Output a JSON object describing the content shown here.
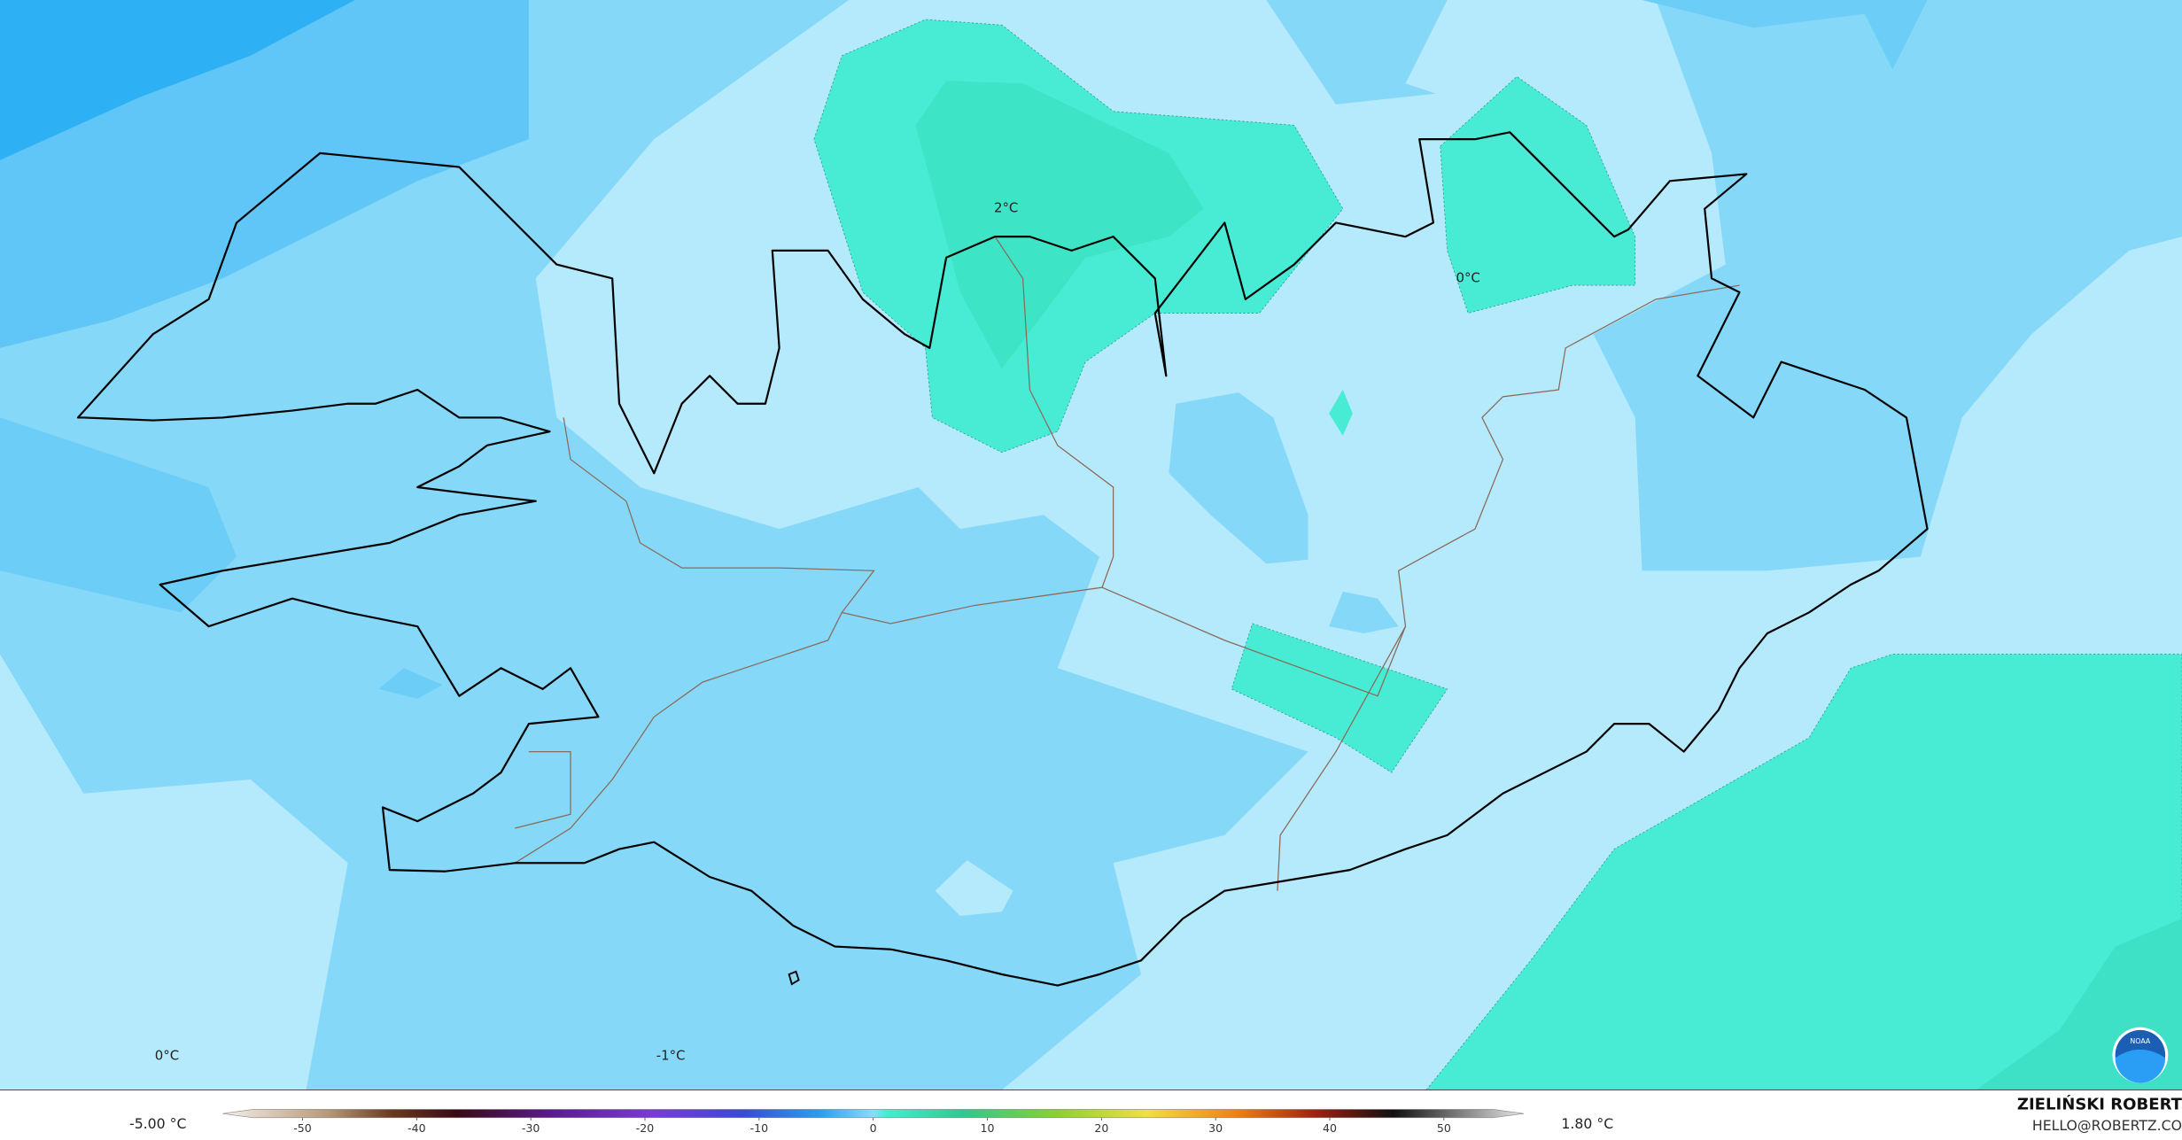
{
  "map": {
    "contour_labels": [
      "2°C",
      "0°C",
      "0°C",
      "-1°C"
    ],
    "min_label": "-5.00 °C",
    "max_label": "1.80 °C",
    "colorbar": {
      "xlim": [
        -57,
        57
      ],
      "ticks": [
        -50,
        -40,
        -30,
        -20,
        -10,
        0,
        10,
        20,
        30,
        40,
        50
      ]
    },
    "author": "ZIELIŃSKI ROBERT",
    "email": "HELLO@ROBERTZ.CO",
    "logo": "NOAA"
  }
}
